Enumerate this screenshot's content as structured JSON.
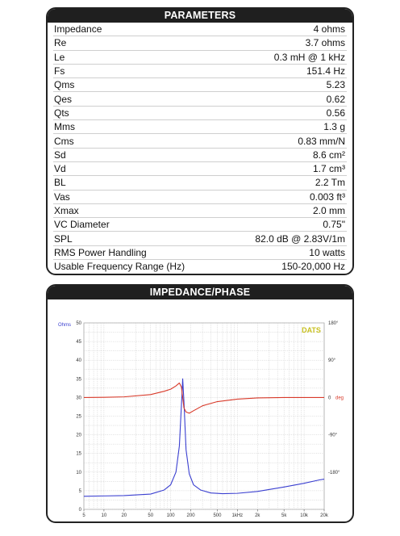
{
  "parameters": {
    "title": "PARAMETERS",
    "rows": [
      {
        "label": "Impedance",
        "value": "4 ohms"
      },
      {
        "label": "Re",
        "value": "3.7 ohms"
      },
      {
        "label": "Le",
        "value": "0.3 mH @ 1 kHz"
      },
      {
        "label": "Fs",
        "value": "151.4 Hz"
      },
      {
        "label": "Qms",
        "value": "5.23"
      },
      {
        "label": "Qes",
        "value": "0.62"
      },
      {
        "label": "Qts",
        "value": "0.56"
      },
      {
        "label": "Mms",
        "value": "1.3 g"
      },
      {
        "label": "Cms",
        "value": "0.83 mm/N"
      },
      {
        "label": "Sd",
        "value": "8.6 cm²"
      },
      {
        "label": "Vd",
        "value": "1.7 cm³"
      },
      {
        "label": "BL",
        "value": "2.2 Tm"
      },
      {
        "label": "Vas",
        "value": "0.003 ft³"
      },
      {
        "label": "Xmax",
        "value": "2.0 mm"
      },
      {
        "label": "VC Diameter",
        "value": "0.75\""
      },
      {
        "label": "SPL",
        "value": "82.0 dB @ 2.83V/1m"
      },
      {
        "label": "RMS Power Handling",
        "value": "10 watts"
      },
      {
        "label": "Usable Frequency Range (Hz)",
        "value": "150-20,000 Hz"
      }
    ]
  },
  "impedance_panel": {
    "title": "IMPEDANCE/PHASE",
    "watermark": "DATS",
    "left_unit": "Ohms",
    "right_unit": "deg"
  },
  "colors": {
    "impedance": "#3a3fd0",
    "phase": "#d83a2a",
    "watermark": "#c8c020"
  },
  "chart_data": {
    "type": "line",
    "x_scale": "log",
    "xlim": [
      5,
      20000
    ],
    "ylim": [
      0,
      50
    ],
    "y2lim": [
      -270,
      180
    ],
    "x_ticks": [
      {
        "v": 5,
        "label": "5"
      },
      {
        "v": 10,
        "label": "10"
      },
      {
        "v": 20,
        "label": "20"
      },
      {
        "v": 50,
        "label": "50"
      },
      {
        "v": 100,
        "label": "100"
      },
      {
        "v": 200,
        "label": "200"
      },
      {
        "v": 500,
        "label": "500"
      },
      {
        "v": 1000,
        "label": "1kHz"
      },
      {
        "v": 2000,
        "label": "2k"
      },
      {
        "v": 5000,
        "label": "5k"
      },
      {
        "v": 10000,
        "label": "10k"
      },
      {
        "v": 20000,
        "label": "20k"
      }
    ],
    "y_ticks": [
      0,
      5,
      10,
      15,
      20,
      25,
      30,
      35,
      40,
      45,
      50
    ],
    "y2_ticks": [
      {
        "v": 180,
        "label": "180°"
      },
      {
        "v": 90,
        "label": "90°"
      },
      {
        "v": 0,
        "label": "0"
      },
      {
        "v": -90,
        "label": "-90°"
      },
      {
        "v": -180,
        "label": "-180°"
      }
    ],
    "series": [
      {
        "key": "impedance",
        "axis": "left",
        "points": [
          [
            5,
            3.5
          ],
          [
            10,
            3.6
          ],
          [
            20,
            3.7
          ],
          [
            50,
            4.1
          ],
          [
            80,
            5.2
          ],
          [
            100,
            6.6
          ],
          [
            120,
            10
          ],
          [
            135,
            17
          ],
          [
            145,
            28
          ],
          [
            151.4,
            35
          ],
          [
            158,
            29
          ],
          [
            170,
            16
          ],
          [
            190,
            9.5
          ],
          [
            220,
            6.6
          ],
          [
            280,
            5.2
          ],
          [
            400,
            4.4
          ],
          [
            600,
            4.2
          ],
          [
            1000,
            4.3
          ],
          [
            2000,
            4.8
          ],
          [
            5000,
            6.0
          ],
          [
            10000,
            7.0
          ],
          [
            17000,
            7.9
          ],
          [
            20000,
            8.1
          ]
        ]
      },
      {
        "key": "phase",
        "axis": "right",
        "points": [
          [
            5,
            0
          ],
          [
            10,
            0.5
          ],
          [
            20,
            1.5
          ],
          [
            50,
            7
          ],
          [
            80,
            15
          ],
          [
            100,
            20
          ],
          [
            120,
            28
          ],
          [
            135,
            35
          ],
          [
            145,
            25
          ],
          [
            151.4,
            0
          ],
          [
            158,
            -25
          ],
          [
            170,
            -35
          ],
          [
            190,
            -38
          ],
          [
            220,
            -32
          ],
          [
            300,
            -20
          ],
          [
            500,
            -10
          ],
          [
            1000,
            -4
          ],
          [
            2000,
            -1
          ],
          [
            5000,
            0
          ],
          [
            10000,
            0
          ],
          [
            20000,
            0
          ]
        ]
      }
    ]
  }
}
